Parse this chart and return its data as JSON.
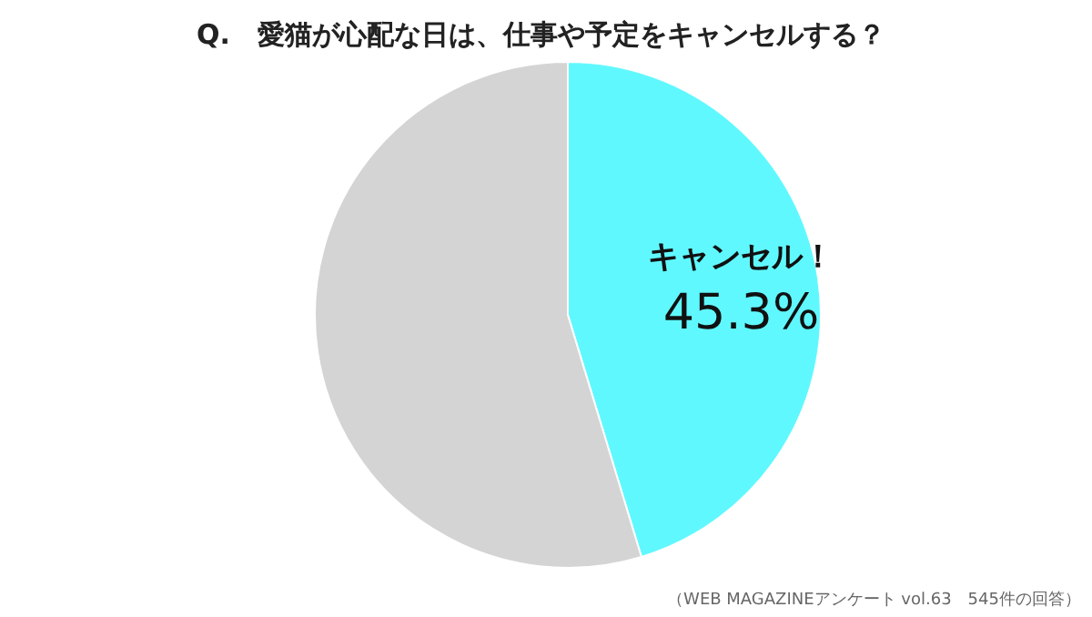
{
  "chart_data": {
    "type": "pie",
    "title": "Q.　愛猫が心配な日は、仕事や予定をキャンセルする？",
    "categories": [
      "キャンセル！",
      null
    ],
    "values": [
      45.3,
      54.7
    ],
    "colors": [
      "#60f8ff",
      "#d4d4d4"
    ],
    "value_labels": [
      "45.3%",
      null
    ],
    "annotations": [
      "（WEB MAGAZINEアンケート vol.63　545件の回答）"
    ]
  }
}
